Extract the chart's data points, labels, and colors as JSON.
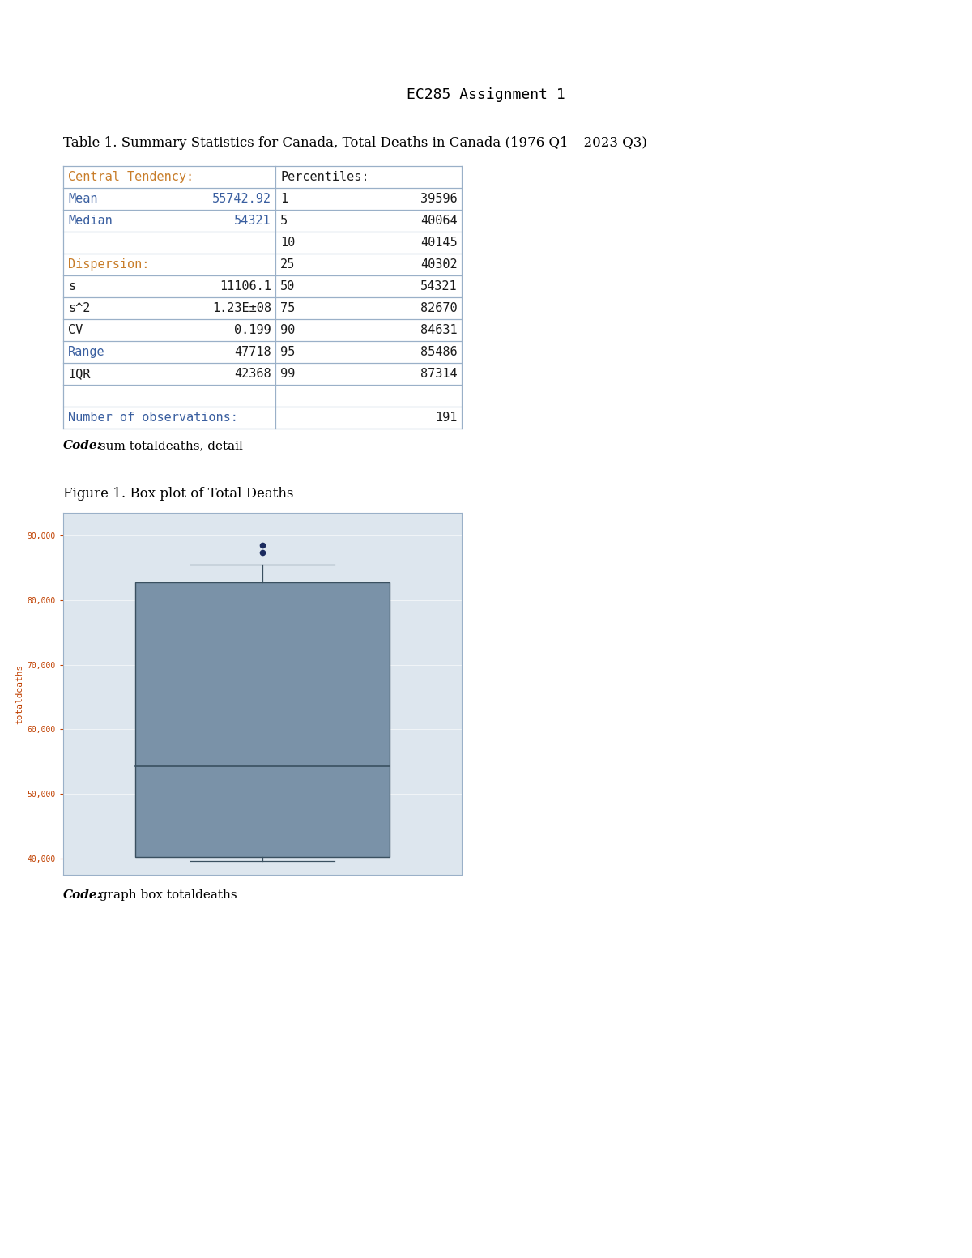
{
  "page_title": "EC285 Assignment 1",
  "table_title": "Table 1. Summary Statistics for Canada, Total Deaths in Canada (1976 Q1 – 2023 Q3)",
  "figure_title": "Figure 1. Box plot of Total Deaths",
  "code_table_italic": "Code:",
  "code_table_normal": " sum totaldeaths, detail",
  "code_figure_italic": "Code:",
  "code_figure_normal": " graph box totaldeaths",
  "orange_color": "#c87d2a",
  "blue_color": "#3a5fa0",
  "black_color": "#1a1a1a",
  "box_color": "#7a92a8",
  "box_edge_color": "#3a5060",
  "plot_bg_color": "#dde6ee",
  "plot_border_color": "#9ab0c8",
  "line_color": "#9ab0c8",
  "ylabel": "totaldeaths",
  "ytick_color": "#c04000",
  "ylabel_color": "#c04000",
  "yticks": [
    40000,
    50000,
    60000,
    70000,
    80000,
    90000
  ],
  "ytick_labels": [
    "40,000",
    "50,000",
    "60,000",
    "70,000",
    "80,000",
    "90,000"
  ],
  "box_stats": {
    "median": 54321,
    "q1": 40302,
    "q3": 82670,
    "whisker_low": 39596,
    "whisker_high": 85486,
    "outlier1": 87314,
    "outlier2": 88500
  }
}
